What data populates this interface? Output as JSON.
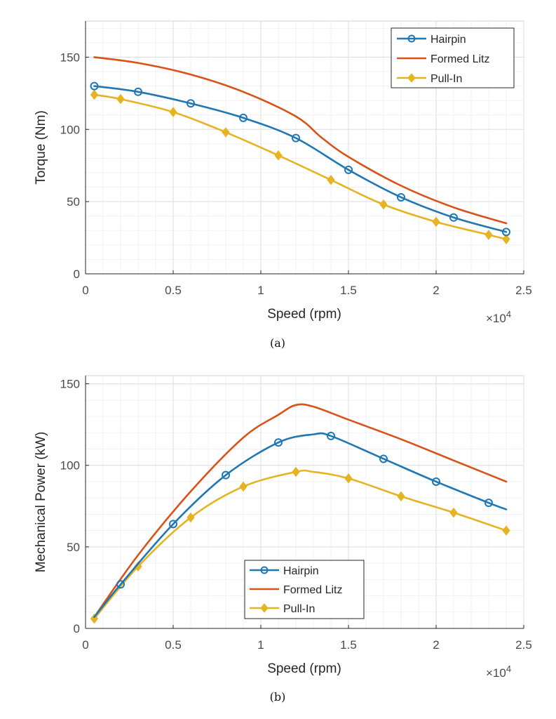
{
  "chart_data": [
    {
      "type": "line",
      "id": "torque",
      "subcaption": "(a)",
      "xlabel": "Speed (rpm)",
      "ylabel": "Torque (Nm)",
      "x_multiplier": "×10",
      "x_multiplier_exp": "4",
      "xlim": [
        0,
        2.5
      ],
      "ylim": [
        0,
        175
      ],
      "xticks": [
        0,
        0.5,
        1,
        1.5,
        2,
        2.5
      ],
      "xtick_labels": [
        "0",
        "0.5",
        "1",
        "1.5",
        "2",
        "2.5"
      ],
      "yticks": [
        0,
        50,
        100,
        150
      ],
      "ytick_labels": [
        "0",
        "50",
        "100",
        "150"
      ],
      "grid": true,
      "legend_position": "top-right",
      "series": [
        {
          "name": "Hairpin",
          "color": "#1f77b4",
          "marker": "circle",
          "x": [
            0.05,
            0.3,
            0.6,
            0.9,
            1.2,
            1.5,
            1.8,
            2.1,
            2.4
          ],
          "y": [
            130,
            126,
            118,
            108,
            94,
            72,
            53,
            39,
            29
          ]
        },
        {
          "name": "Formed Litz",
          "color": "#d95319",
          "marker": "none",
          "x": [
            0.05,
            0.3,
            0.6,
            0.9,
            1.2,
            1.35,
            1.5,
            1.8,
            2.1,
            2.4
          ],
          "y": [
            150,
            146,
            138,
            126,
            109,
            94,
            81,
            61,
            46,
            35
          ]
        },
        {
          "name": "Pull-In",
          "color": "#e6b422",
          "marker": "diamond",
          "x": [
            0.05,
            0.2,
            0.5,
            0.8,
            1.1,
            1.4,
            1.7,
            2.0,
            2.3,
            2.4
          ],
          "y": [
            124,
            121,
            112,
            98,
            82,
            65,
            48,
            36,
            27,
            24
          ]
        }
      ]
    },
    {
      "type": "line",
      "id": "power",
      "subcaption": "(b)",
      "xlabel": "Speed (rpm)",
      "ylabel": "Mechanical Power (kW)",
      "x_multiplier": "×10",
      "x_multiplier_exp": "4",
      "xlim": [
        0,
        2.5
      ],
      "ylim": [
        0,
        155
      ],
      "xticks": [
        0,
        0.5,
        1,
        1.5,
        2,
        2.5
      ],
      "xtick_labels": [
        "0",
        "0.5",
        "1",
        "1.5",
        "2",
        "2.5"
      ],
      "yticks": [
        0,
        50,
        100,
        150
      ],
      "ytick_labels": [
        "0",
        "50",
        "100",
        "150"
      ],
      "grid": true,
      "legend_position": "lower-center",
      "series": [
        {
          "name": "Hairpin",
          "color": "#1f77b4",
          "marker": "circle",
          "x": [
            0.05,
            0.2,
            0.5,
            0.8,
            1.1,
            1.3,
            1.4,
            1.7,
            2.0,
            2.3,
            2.4
          ],
          "y": [
            7,
            27,
            64,
            94,
            114,
            119,
            118,
            104,
            90,
            77,
            73
          ],
          "marker_x": [
            0.2,
            0.5,
            0.8,
            1.1,
            1.4,
            1.7,
            2.0,
            2.3
          ],
          "marker_y": [
            27,
            64,
            94,
            114,
            118,
            104,
            90,
            77
          ]
        },
        {
          "name": "Formed Litz",
          "color": "#d95319",
          "marker": "none",
          "x": [
            0.05,
            0.3,
            0.6,
            0.9,
            1.1,
            1.2,
            1.3,
            1.5,
            1.8,
            2.1,
            2.4
          ],
          "y": [
            7,
            45,
            84,
            117,
            131,
            137,
            136,
            128,
            116,
            103,
            90
          ]
        },
        {
          "name": "Pull-In",
          "color": "#e6b422",
          "marker": "diamond",
          "x": [
            0.05,
            0.3,
            0.6,
            0.9,
            1.2,
            1.3,
            1.5,
            1.8,
            2.1,
            2.4
          ],
          "y": [
            6,
            38,
            68,
            87,
            96,
            96,
            92,
            81,
            71,
            60
          ],
          "marker_x": [
            0.05,
            0.3,
            0.6,
            0.9,
            1.2,
            1.5,
            1.8,
            2.1,
            2.4
          ],
          "marker_y": [
            6,
            38,
            68,
            87,
            96,
            92,
            81,
            71,
            60
          ]
        }
      ]
    }
  ]
}
